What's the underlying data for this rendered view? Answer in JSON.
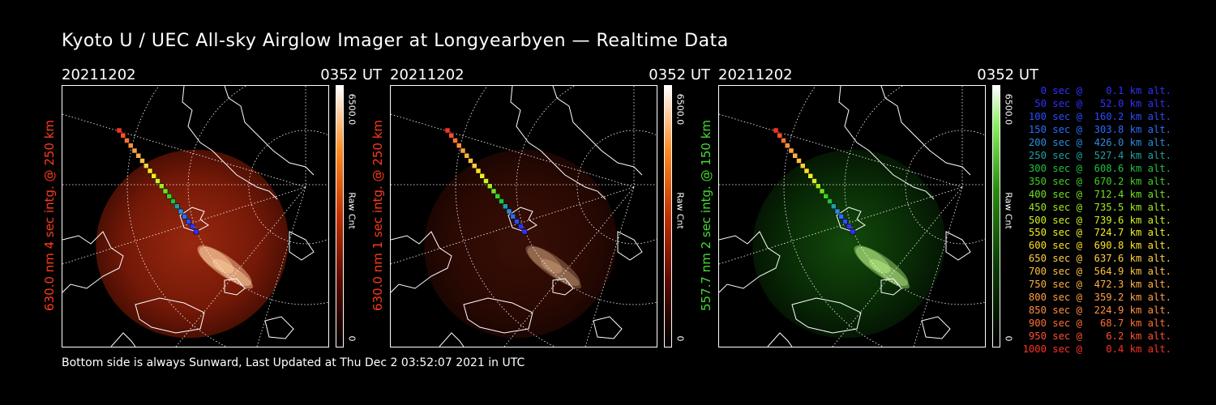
{
  "title": "Kyoto U / UEC All-sky Airglow Imager at Longyearbyen — Realtime Data",
  "footer": "Bottom side is always Sunward, Last Updated at Thu Dec  2 03:52:07 2021 in UTC",
  "panels": [
    {
      "date": "20211202",
      "time": "0352 UT",
      "ylabel": "630.0 nm 4 sec intg. @ 250 km",
      "ylabel_color": "#ff3a1a",
      "cbar_max": "6500.0",
      "cbar_unit": "Raw Cnt",
      "cbar_min": "0",
      "intensity": 0.95,
      "palette": "red"
    },
    {
      "date": "20211202",
      "time": "0352 UT",
      "ylabel": "630.0 nm 1 sec intg. @ 250 km",
      "ylabel_color": "#ff3a1a",
      "cbar_max": "6500.0",
      "cbar_unit": "Raw Cnt",
      "cbar_min": "0",
      "intensity": 0.35,
      "palette": "red"
    },
    {
      "date": "20211202",
      "time": "0352 UT",
      "ylabel": "557.7 nm 2 sec intg. @ 150 km",
      "ylabel_color": "#44dd33",
      "cbar_max": "6500.0",
      "cbar_unit": "Raw Cnt",
      "cbar_min": "0",
      "intensity": 0.7,
      "palette": "green"
    }
  ],
  "trajectory_legend": [
    {
      "text": "   0 sec @    0.1 km alt.",
      "color": "#3030ff"
    },
    {
      "text": "  50 sec @   52.0 km alt.",
      "color": "#3030ff"
    },
    {
      "text": " 100 sec @  160.2 km alt.",
      "color": "#2a4cff"
    },
    {
      "text": " 150 sec @  303.8 km alt.",
      "color": "#2a6cff"
    },
    {
      "text": " 200 sec @  426.0 km alt.",
      "color": "#2a8ce0"
    },
    {
      "text": " 250 sec @  527.4 km alt.",
      "color": "#20a0a0"
    },
    {
      "text": " 300 sec @  608.6 km alt.",
      "color": "#20c040"
    },
    {
      "text": " 350 sec @  670.2 km alt.",
      "color": "#40d020"
    },
    {
      "text": " 400 sec @  712.4 km alt.",
      "color": "#70e020"
    },
    {
      "text": " 450 sec @  735.5 km alt.",
      "color": "#a0e820"
    },
    {
      "text": " 500 sec @  739.6 km alt.",
      "color": "#d0f020"
    },
    {
      "text": " 550 sec @  724.7 km alt.",
      "color": "#f0f020"
    },
    {
      "text": " 600 sec @  690.8 km alt.",
      "color": "#ffe020"
    },
    {
      "text": " 650 sec @  637.6 km alt.",
      "color": "#ffd040"
    },
    {
      "text": " 700 sec @  564.9 km alt.",
      "color": "#ffc040"
    },
    {
      "text": " 750 sec @  472.3 km alt.",
      "color": "#ffb040"
    },
    {
      "text": " 800 sec @  359.2 km alt.",
      "color": "#ffa040"
    },
    {
      "text": " 850 sec @  224.9 km alt.",
      "color": "#ff9040"
    },
    {
      "text": " 900 sec @   68.7 km alt.",
      "color": "#ff7030"
    },
    {
      "text": " 950 sec @    6.2 km alt.",
      "color": "#ff5030"
    },
    {
      "text": "1000 sec @    0.4 km alt.",
      "color": "#ff3020"
    }
  ]
}
